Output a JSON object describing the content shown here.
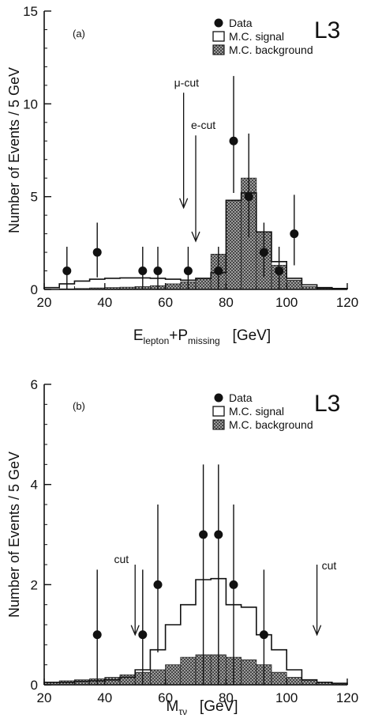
{
  "chart_data": [
    {
      "type": "histogram",
      "panel_label": "(a)",
      "experiment_label": "L3",
      "xlabel": {
        "main": "E",
        "sub": "lepton",
        "plus": "+P",
        "sub2": "missing",
        "unit": "[GeV]"
      },
      "ylabel": "Number of Events / 5 GeV",
      "xlim": [
        20,
        120
      ],
      "ylim": [
        0,
        15
      ],
      "xticks": [
        20,
        40,
        60,
        80,
        100,
        120
      ],
      "yticks": [
        0,
        5,
        10,
        15
      ],
      "legend": [
        {
          "label": "Data",
          "style": "point"
        },
        {
          "label": "M.C. signal",
          "style": "open-box"
        },
        {
          "label": "M.C. background",
          "style": "hatched-box"
        }
      ],
      "bin_edges": [
        20,
        25,
        30,
        35,
        40,
        45,
        50,
        55,
        60,
        65,
        70,
        75,
        80,
        85,
        90,
        95,
        100,
        105,
        110,
        115,
        120
      ],
      "series": [
        {
          "name": "M.C. signal",
          "values": [
            0.1,
            0.3,
            0.45,
            0.55,
            0.6,
            0.62,
            0.62,
            0.6,
            0.55,
            0.5,
            0.6,
            0.9,
            4.8,
            5.2,
            3.1,
            1.5,
            0.6,
            0.25,
            0.1,
            0.05
          ]
        },
        {
          "name": "M.C. background",
          "values": [
            0.0,
            0.03,
            0.05,
            0.08,
            0.1,
            0.12,
            0.15,
            0.2,
            0.3,
            0.4,
            0.6,
            1.9,
            4.8,
            6.0,
            3.1,
            1.3,
            0.5,
            0.15,
            0.05,
            0.0
          ]
        },
        {
          "name": "Data",
          "points": [
            {
              "x": 27.5,
              "y": 1,
              "lo": 0,
              "hi": 2.3
            },
            {
              "x": 37.5,
              "y": 2,
              "lo": 0.65,
              "hi": 3.6
            },
            {
              "x": 52.5,
              "y": 1,
              "lo": 0,
              "hi": 2.3
            },
            {
              "x": 57.5,
              "y": 1,
              "lo": 0,
              "hi": 2.3
            },
            {
              "x": 67.5,
              "y": 1,
              "lo": 0,
              "hi": 2.3
            },
            {
              "x": 77.5,
              "y": 1,
              "lo": 0,
              "hi": 2.3
            },
            {
              "x": 82.5,
              "y": 8,
              "lo": 5.2,
              "hi": 11.5
            },
            {
              "x": 87.5,
              "y": 5,
              "lo": 2.8,
              "hi": 8.4
            },
            {
              "x": 92.5,
              "y": 2,
              "lo": 0.65,
              "hi": 3.6
            },
            {
              "x": 97.5,
              "y": 1,
              "lo": 0,
              "hi": 2.3
            },
            {
              "x": 102.5,
              "y": 3,
              "lo": 1.3,
              "hi": 5.1
            }
          ]
        }
      ],
      "annotations": [
        {
          "text": "μ-cut",
          "x": 66,
          "y_top": 10.6,
          "y_bottom": 4.4
        },
        {
          "text": "e-cut",
          "x": 70,
          "y_top": 8.3,
          "y_bottom": 2.6
        }
      ]
    },
    {
      "type": "histogram",
      "panel_label": "(b)",
      "experiment_label": "L3",
      "xlabel": {
        "main": "M",
        "sub": "τν",
        "unit": "[GeV]"
      },
      "ylabel": "Number of Events / 5 GeV",
      "xlim": [
        20,
        120
      ],
      "ylim": [
        0,
        6
      ],
      "xticks": [
        20,
        40,
        60,
        80,
        100,
        120
      ],
      "yticks": [
        0,
        2,
        4,
        6
      ],
      "legend": [
        {
          "label": "Data",
          "style": "point"
        },
        {
          "label": "M.C. signal",
          "style": "open-box"
        },
        {
          "label": "M.C. background",
          "style": "hatched-box"
        }
      ],
      "bin_edges": [
        20,
        25,
        30,
        35,
        40,
        45,
        50,
        55,
        60,
        65,
        70,
        75,
        80,
        85,
        90,
        95,
        100,
        105,
        110,
        115,
        120
      ],
      "series": [
        {
          "name": "M.C. signal",
          "values": [
            0.05,
            0.05,
            0.07,
            0.08,
            0.1,
            0.15,
            0.3,
            0.7,
            1.2,
            1.6,
            2.1,
            2.12,
            1.6,
            1.55,
            1.0,
            0.7,
            0.3,
            0.1,
            0.05,
            0.03
          ]
        },
        {
          "name": "M.C. background",
          "values": [
            0.05,
            0.08,
            0.1,
            0.12,
            0.15,
            0.2,
            0.25,
            0.3,
            0.4,
            0.55,
            0.6,
            0.6,
            0.55,
            0.5,
            0.4,
            0.25,
            0.15,
            0.1,
            0.05,
            0.03
          ]
        },
        {
          "name": "Data",
          "points": [
            {
              "x": 37.5,
              "y": 1,
              "lo": 0,
              "hi": 2.3
            },
            {
              "x": 52.5,
              "y": 1,
              "lo": 0,
              "hi": 2.3
            },
            {
              "x": 57.5,
              "y": 2,
              "lo": 0.65,
              "hi": 3.6
            },
            {
              "x": 72.5,
              "y": 3,
              "lo": 0,
              "hi": 4.4
            },
            {
              "x": 77.5,
              "y": 3,
              "lo": 0,
              "hi": 4.4
            },
            {
              "x": 82.5,
              "y": 2,
              "lo": 0,
              "hi": 3.6
            },
            {
              "x": 92.5,
              "y": 1,
              "lo": 0,
              "hi": 2.3
            }
          ]
        }
      ],
      "annotations": [
        {
          "text": "cut",
          "x": 50,
          "y_top": 2.4,
          "y_bottom": 1.0
        },
        {
          "text": "cut",
          "x": 110,
          "y_top": 2.4,
          "y_bottom": 1.0
        }
      ]
    }
  ]
}
